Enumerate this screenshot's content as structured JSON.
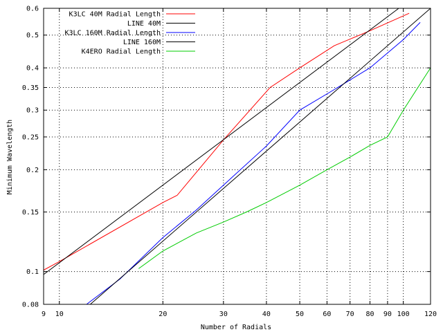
{
  "chart_data": {
    "type": "line",
    "title": "",
    "xlabel": "Number of Radials",
    "ylabel": "Minimum Wavelength",
    "xscale": "log",
    "yscale": "log",
    "xlim": [
      9,
      120
    ],
    "ylim": [
      0.08,
      0.6
    ],
    "grid": true,
    "legend_position": "top-right",
    "x_ticks": [
      {
        "value": 9,
        "label": "9"
      },
      {
        "value": 10,
        "label": "10"
      },
      {
        "value": 20,
        "label": "20"
      },
      {
        "value": 30,
        "label": "30"
      },
      {
        "value": 40,
        "label": "40"
      },
      {
        "value": 50,
        "label": "50"
      },
      {
        "value": 60,
        "label": "60"
      },
      {
        "value": 70,
        "label": "70"
      },
      {
        "value": 80,
        "label": "80"
      },
      {
        "value": 90,
        "label": "90"
      },
      {
        "value": 100,
        "label": "100"
      },
      {
        "value": 120,
        "label": "120"
      }
    ],
    "y_ticks": [
      {
        "value": 0.08,
        "label": "0.08"
      },
      {
        "value": 0.1,
        "label": "0.1"
      },
      {
        "value": 0.15,
        "label": "0.15"
      },
      {
        "value": 0.2,
        "label": "0.2"
      },
      {
        "value": 0.25,
        "label": "0.25"
      },
      {
        "value": 0.3,
        "label": "0.3"
      },
      {
        "value": 0.35,
        "label": "0.35"
      },
      {
        "value": 0.4,
        "label": "0.4"
      },
      {
        "value": 0.5,
        "label": "0.5"
      },
      {
        "value": 0.6,
        "label": "0.6"
      }
    ],
    "series": [
      {
        "name": "K3LC 40M Radial Length",
        "color": "#ff0000",
        "points": [
          [
            9,
            0.101
          ],
          [
            10,
            0.107
          ],
          [
            20,
            0.16
          ],
          [
            22,
            0.168
          ],
          [
            30,
            0.245
          ],
          [
            41,
            0.35
          ],
          [
            50,
            0.4
          ],
          [
            63,
            0.465
          ],
          [
            80,
            0.515
          ],
          [
            100,
            0.57
          ],
          [
            104,
            0.58
          ]
        ]
      },
      {
        "name": "LINE 40M",
        "color": "#000000",
        "points": [
          [
            9,
            0.098
          ],
          [
            97,
            0.6
          ]
        ]
      },
      {
        "name": "K3LC 160M Radial Length",
        "color": "#0000ff",
        "points": [
          [
            12,
            0.08
          ],
          [
            15,
            0.095
          ],
          [
            20,
            0.126
          ],
          [
            25,
            0.152
          ],
          [
            30,
            0.18
          ],
          [
            40,
            0.235
          ],
          [
            50,
            0.3
          ],
          [
            63,
            0.345
          ],
          [
            80,
            0.4
          ],
          [
            100,
            0.485
          ],
          [
            112,
            0.545
          ]
        ]
      },
      {
        "name": "LINE 160M",
        "color": "#000000",
        "points": [
          [
            12.3,
            0.08
          ],
          [
            120,
            0.6
          ]
        ]
      },
      {
        "name": "K4ERO Radial Length",
        "color": "#00cc00",
        "points": [
          [
            17,
            0.102
          ],
          [
            20,
            0.115
          ],
          [
            25,
            0.13
          ],
          [
            30,
            0.14
          ],
          [
            35,
            0.15
          ],
          [
            40,
            0.16
          ],
          [
            50,
            0.18
          ],
          [
            60,
            0.2
          ],
          [
            70,
            0.218
          ],
          [
            80,
            0.236
          ],
          [
            90,
            0.25
          ],
          [
            100,
            0.3
          ],
          [
            120,
            0.4
          ]
        ]
      }
    ]
  }
}
